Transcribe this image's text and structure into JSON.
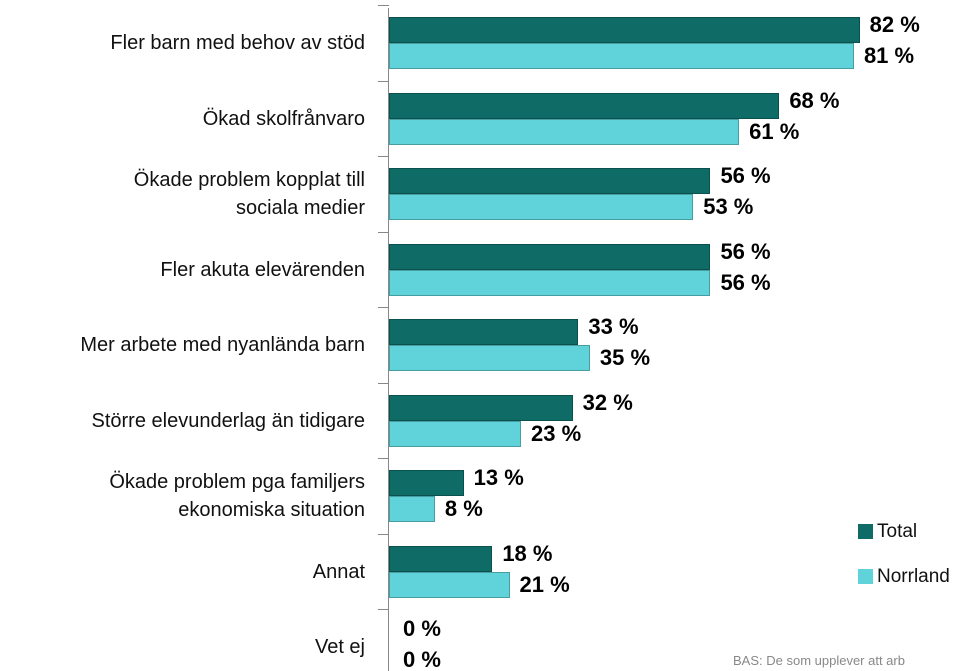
{
  "chart_data": {
    "type": "bar",
    "orientation": "horizontal",
    "categories": [
      "Fler barn med behov av stöd",
      "Ökad skolfrånvaro",
      "Ökade problem kopplat till\nsociala medier",
      "Fler akuta elevärenden",
      "Mer arbete med nyanlända barn",
      "Större elevunderlag än tidigare",
      "Ökade problem pga familjers\nekonomiska situation",
      "Annat",
      "Vet ej"
    ],
    "series": [
      {
        "name": "Total",
        "color": "#0e6b66",
        "values": [
          82,
          68,
          56,
          56,
          33,
          32,
          13,
          18,
          0
        ],
        "value_labels": [
          "82 %",
          "68 %",
          "56 %",
          "56 %",
          "33 %",
          "32 %",
          "13 %",
          "18 %",
          "0 %"
        ]
      },
      {
        "name": "Norrland",
        "color": "#5fd3d9",
        "values": [
          81,
          61,
          53,
          56,
          35,
          23,
          8,
          21,
          0
        ],
        "value_labels": [
          "81 %",
          "61 %",
          "53 %",
          "56 %",
          "35 %",
          "23 %",
          "8 %",
          "21 %",
          "0 %"
        ]
      }
    ],
    "legend": "bottom-right",
    "footnote": "BAS: De som upplever att arb"
  }
}
